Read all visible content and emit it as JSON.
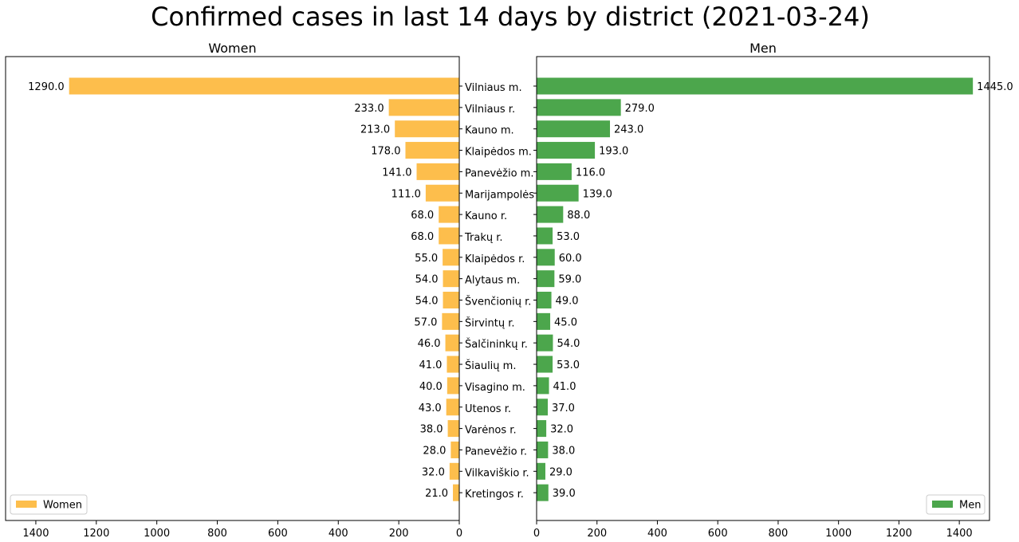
{
  "chart_data": {
    "type": "bar",
    "title": "Confirmed cases in last 14 days by district (2021-03-24)",
    "categories": [
      "Vilniaus m.",
      "Vilniaus r.",
      "Kauno m.",
      "Klaipėdos m.",
      "Panevėžio m.",
      "Marijampolės",
      "Kauno r.",
      "Trakų r.",
      "Klaipėdos r.",
      "Alytaus m.",
      "Švenčionių r.",
      "Širvintų r.",
      "Šalčininkų r.",
      "Šiaulių m.",
      "Visagino m.",
      "Utenos r.",
      "Varėnos r.",
      "Panevėžio r.",
      "Vilkaviškio r.",
      "Kretingos r."
    ],
    "panels": [
      {
        "title": "Women",
        "series": [
          {
            "name": "Women",
            "color": "#fdbe4c",
            "values": [
              1290,
              233,
              213,
              178,
              141,
              111,
              68,
              68,
              55,
              54,
              54,
              57,
              46,
              41,
              40,
              43,
              38,
              28,
              32,
              21
            ]
          }
        ],
        "xlim": [
          1500,
          0
        ],
        "xticks": [
          "1400",
          "1200",
          "1000",
          "800",
          "600",
          "400",
          "200",
          "0"
        ],
        "xtick_values": [
          1400,
          1200,
          1000,
          800,
          600,
          400,
          200,
          0
        ],
        "value_labels": [
          "1290.0",
          "233.0",
          "213.0",
          "178.0",
          "141.0",
          "111.0",
          "68.0",
          "68.0",
          "55.0",
          "54.0",
          "54.0",
          "57.0",
          "46.0",
          "41.0",
          "40.0",
          "43.0",
          "38.0",
          "28.0",
          "32.0",
          "21.0"
        ],
        "legend": "lower-left",
        "inverted_x": true
      },
      {
        "title": "Men",
        "series": [
          {
            "name": "Men",
            "color": "#4ca64c",
            "values": [
              1445,
              279,
              243,
              193,
              116,
              139,
              88,
              53,
              60,
              59,
              49,
              45,
              54,
              53,
              41,
              37,
              32,
              38,
              29,
              39
            ]
          }
        ],
        "xlim": [
          0,
          1500
        ],
        "xticks": [
          "0",
          "200",
          "400",
          "600",
          "800",
          "1000",
          "1200",
          "1400"
        ],
        "xtick_values": [
          0,
          200,
          400,
          600,
          800,
          1000,
          1200,
          1400
        ],
        "value_labels": [
          "1445.0",
          "279.0",
          "243.0",
          "193.0",
          "116.0",
          "139.0",
          "88.0",
          "53.0",
          "60.0",
          "59.0",
          "49.0",
          "45.0",
          "54.0",
          "53.0",
          "41.0",
          "37.0",
          "32.0",
          "38.0",
          "29.0",
          "39.0"
        ],
        "legend": "lower-right",
        "inverted_x": false
      }
    ],
    "grid": false
  }
}
